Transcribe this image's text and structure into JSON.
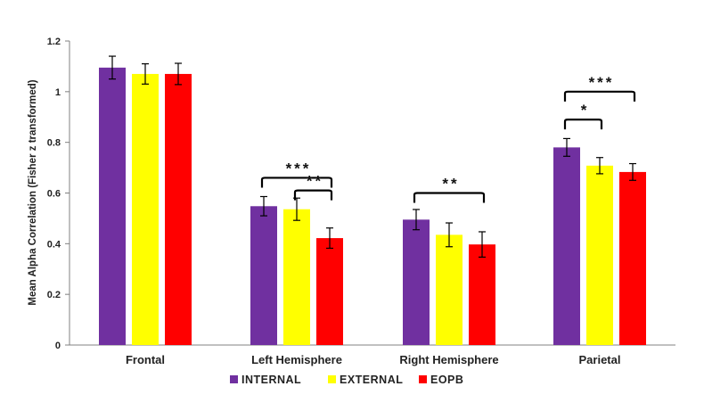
{
  "chart_data": {
    "type": "bar",
    "title": "",
    "xlabel": "",
    "ylabel": "Mean Alpha Correlation (Fisher z transformed)",
    "ylim": [
      0,
      1.2
    ],
    "yticks": [
      "0",
      "0.2",
      "0.4",
      "0.6",
      "0.8",
      "1",
      "1.2"
    ],
    "ytick_values": [
      0,
      0.2,
      0.4,
      0.6,
      0.8,
      1.0,
      1.2
    ],
    "categories": [
      "Frontal",
      "Left Hemisphere",
      "Right Hemisphere",
      "Parietal"
    ],
    "series": [
      {
        "name": "INTERNAL",
        "color": "#7030a0",
        "values": [
          1.095,
          0.548,
          0.495,
          0.78
        ],
        "errors": [
          0.045,
          0.038,
          0.04,
          0.035
        ]
      },
      {
        "name": "EXTERNAL",
        "color": "#ffff00",
        "values": [
          1.07,
          0.536,
          0.435,
          0.708
        ],
        "errors": [
          0.04,
          0.044,
          0.047,
          0.032
        ]
      },
      {
        "name": "EOPB",
        "color": "#ff0000",
        "values": [
          1.07,
          0.422,
          0.397,
          0.683
        ],
        "errors": [
          0.042,
          0.04,
          0.05,
          0.033
        ]
      }
    ],
    "significance": [
      {
        "category": 1,
        "from": 0,
        "to": 2,
        "label": "***",
        "y": 0.66
      },
      {
        "category": 1,
        "from": 1,
        "to": 2,
        "label": "**",
        "y": 0.61
      },
      {
        "category": 2,
        "from": 0,
        "to": 2,
        "label": "**",
        "y": 0.6
      },
      {
        "category": 3,
        "from": 0,
        "to": 1,
        "label": "*",
        "y": 0.89
      },
      {
        "category": 3,
        "from": 0,
        "to": 2,
        "label": "***",
        "y": 1.0
      }
    ],
    "legend_position": "bottom-center",
    "grid": false
  }
}
